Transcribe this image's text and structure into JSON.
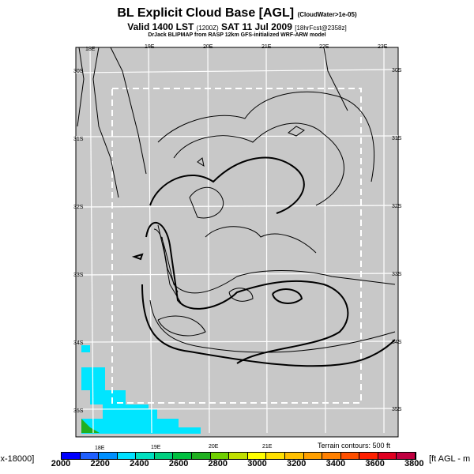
{
  "title": {
    "main": "BL Explicit Cloud Base [AGL]",
    "qualifier": "(CloudWater>1e-05)",
    "valid": "Valid 1400 LST",
    "valid_code": "(1200Z)",
    "date": "SAT 11 Jul 2009",
    "forecast": "[18hrFcst@2358z]",
    "source": "DrJack BLIPMAP from RASP 12km GFS-initialized WRF-ARW model"
  },
  "map": {
    "lon_labels_top": [
      "18E",
      "19E",
      "20E",
      "21E",
      "22E",
      "23E"
    ],
    "lon_labels_bottom": [
      "18E",
      "19E",
      "20E",
      "21E"
    ],
    "lat_labels_left": [
      "30S",
      "31S",
      "32S",
      "33S",
      "34S",
      "35S"
    ],
    "lat_labels_right": [
      "30S",
      "31S",
      "32S",
      "33S",
      "34S",
      "35S"
    ],
    "terrain_note": "Terrain contours: 500 ft",
    "background_color": "#c8c8c8",
    "fill_colors": {
      "cyan": "#00e5ff",
      "green": "#20b020"
    }
  },
  "colorbar": {
    "left_label": "ix-18000]",
    "right_label": "[ft AGL - m",
    "ticks": [
      "2000",
      "2200",
      "2400",
      "2600",
      "2800",
      "3000",
      "3200",
      "3400",
      "3600",
      "3800"
    ],
    "colors": [
      "#0000ff",
      "#2060ff",
      "#0090ff",
      "#00e0ff",
      "#00e0c0",
      "#00d080",
      "#00c040",
      "#20b020",
      "#70d000",
      "#c0e000",
      "#ffff00",
      "#ffe000",
      "#ffc000",
      "#ffa000",
      "#ff8000",
      "#ff5000",
      "#ff2000",
      "#e00020",
      "#c00040"
    ]
  }
}
